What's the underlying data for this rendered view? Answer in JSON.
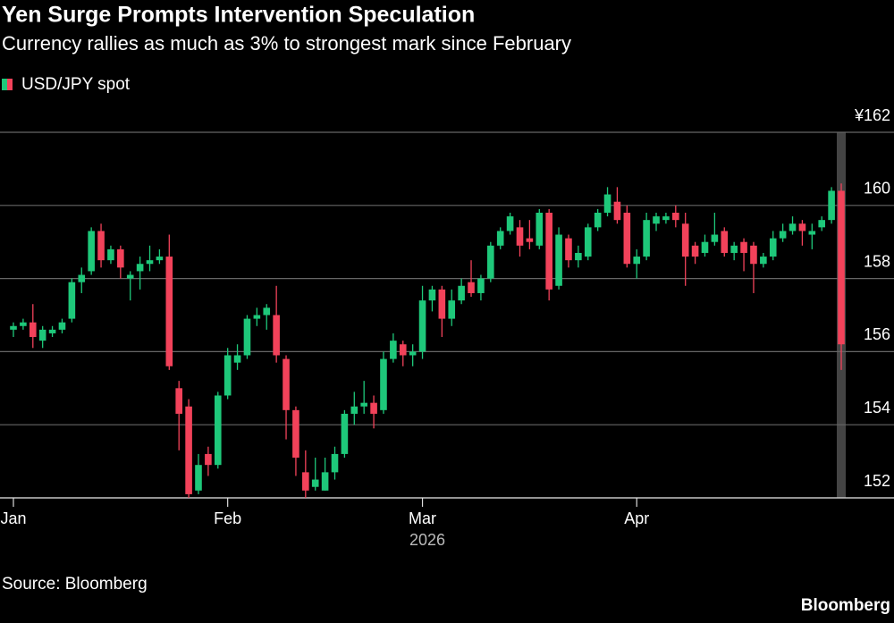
{
  "chart_data": {
    "type": "candlestick",
    "title": "Yen Surge Prompts Intervention Speculation",
    "subtitle": "Currency rallies as much as 3% to strongest mark since February",
    "source": "Source: Bloomberg",
    "brand": "Bloomberg",
    "x_label": "2026",
    "categories": [
      "Jan",
      null,
      null,
      null,
      null,
      null,
      null,
      null,
      null,
      null,
      null,
      null,
      null,
      null,
      null,
      null,
      null,
      null,
      null,
      null,
      null,
      null,
      "Feb",
      null,
      null,
      null,
      null,
      null,
      null,
      null,
      null,
      null,
      null,
      null,
      null,
      null,
      null,
      null,
      null,
      null,
      null,
      null,
      "Mar",
      null,
      null,
      null,
      null,
      null,
      null,
      null,
      null,
      null,
      null,
      null,
      null,
      null,
      null,
      null,
      null,
      null,
      null,
      null,
      null,
      null,
      "Apr",
      null,
      null,
      null,
      null,
      null,
      null,
      null,
      null,
      null,
      null,
      null,
      null,
      null,
      null,
      null,
      null,
      null,
      null,
      null,
      null,
      null
    ],
    "series": [
      {
        "name": "USD/JPY spot",
        "up_color": "#1ec87a",
        "down_color": "#f2425a",
        "open": [
          156.6,
          156.7,
          156.8,
          156.3,
          156.5,
          156.6,
          156.9,
          157.9,
          158.2,
          159.3,
          158.5,
          158.8,
          158.0,
          158.2,
          158.4,
          158.5,
          158.6,
          155.0,
          154.5,
          152.2,
          153.2,
          152.9,
          154.8,
          155.7,
          155.9,
          156.9,
          157.0,
          157.0,
          155.8,
          154.4,
          152.7,
          152.3,
          152.2,
          152.7,
          153.2,
          154.3,
          154.5,
          154.6,
          154.4,
          155.8,
          156.2,
          155.9,
          156.0,
          157.4,
          157.7,
          156.9,
          157.4,
          157.9,
          157.6,
          158.0,
          158.9,
          159.3,
          159.4,
          159.1,
          158.9,
          159.8,
          157.8,
          159.1,
          158.5,
          158.6,
          159.4,
          159.8,
          160.1,
          159.8,
          158.4,
          158.6,
          159.5,
          159.6,
          159.8,
          159.5,
          158.9,
          158.7,
          159.0,
          159.3,
          158.7,
          159.0,
          158.9,
          158.4,
          158.6,
          159.1,
          159.3,
          159.5,
          159.2,
          159.4,
          159.6,
          160.4
        ],
        "high": [
          156.8,
          156.9,
          157.3,
          156.7,
          156.7,
          156.9,
          158.0,
          158.3,
          159.4,
          159.5,
          158.9,
          158.9,
          158.2,
          158.6,
          158.9,
          158.8,
          159.2,
          155.2,
          154.7,
          153.2,
          153.4,
          154.9,
          156.1,
          156.2,
          157.0,
          157.2,
          157.3,
          157.8,
          155.9,
          154.5,
          153.3,
          153.1,
          153.1,
          153.4,
          154.4,
          154.9,
          155.2,
          154.8,
          156.0,
          156.5,
          156.3,
          156.2,
          157.8,
          157.8,
          157.8,
          157.7,
          158.0,
          158.5,
          158.1,
          159.0,
          159.4,
          159.8,
          159.6,
          159.6,
          159.9,
          159.9,
          159.4,
          159.2,
          158.9,
          159.5,
          159.9,
          160.5,
          160.5,
          160.0,
          158.8,
          159.8,
          159.8,
          159.8,
          160.0,
          159.8,
          159.0,
          159.2,
          159.8,
          159.4,
          159.0,
          159.1,
          159.0,
          158.7,
          159.3,
          159.5,
          159.7,
          159.6,
          159.5,
          159.7,
          160.5,
          160.6
        ],
        "low": [
          156.4,
          156.6,
          156.1,
          156.1,
          156.4,
          156.5,
          156.8,
          157.6,
          158.1,
          158.3,
          158.4,
          158.0,
          157.4,
          157.7,
          158.2,
          158.4,
          155.5,
          153.3,
          152.0,
          152.1,
          152.6,
          152.8,
          154.7,
          155.5,
          155.8,
          156.7,
          156.6,
          155.7,
          153.6,
          152.6,
          152.0,
          152.2,
          152.2,
          152.5,
          153.1,
          154.0,
          154.3,
          153.9,
          154.3,
          155.7,
          155.6,
          155.6,
          155.8,
          157.1,
          156.4,
          156.7,
          157.3,
          157.5,
          157.4,
          157.9,
          158.8,
          159.2,
          158.6,
          158.8,
          158.8,
          157.4,
          157.7,
          158.3,
          158.3,
          158.5,
          159.3,
          159.7,
          159.5,
          158.3,
          158.0,
          158.5,
          159.3,
          159.5,
          159.4,
          157.8,
          158.4,
          158.6,
          158.9,
          158.6,
          158.5,
          158.2,
          157.6,
          158.3,
          158.5,
          159.0,
          159.2,
          158.9,
          158.8,
          159.3,
          159.5,
          155.5
        ],
        "close": [
          156.7,
          156.8,
          156.4,
          156.6,
          156.6,
          156.8,
          157.9,
          158.1,
          159.3,
          158.5,
          158.8,
          158.3,
          158.1,
          158.4,
          158.5,
          158.6,
          155.6,
          154.3,
          152.1,
          152.9,
          152.9,
          154.8,
          155.9,
          155.9,
          156.9,
          157.0,
          157.2,
          155.9,
          154.4,
          153.1,
          152.2,
          152.5,
          152.7,
          153.2,
          154.3,
          154.5,
          154.6,
          154.3,
          155.8,
          156.3,
          155.9,
          156.0,
          157.4,
          157.7,
          156.9,
          157.4,
          157.8,
          157.6,
          158.0,
          158.9,
          159.3,
          159.7,
          158.9,
          159.0,
          159.8,
          157.7,
          159.2,
          158.5,
          158.7,
          159.4,
          159.8,
          160.3,
          159.6,
          158.4,
          158.6,
          159.6,
          159.7,
          159.7,
          159.6,
          158.6,
          158.6,
          159.0,
          159.2,
          158.7,
          158.9,
          158.7,
          158.4,
          158.6,
          159.1,
          159.3,
          159.5,
          159.3,
          159.3,
          159.6,
          160.4,
          156.2
        ]
      }
    ],
    "ylim": [
      152,
      162
    ],
    "yticks": [
      152,
      154,
      156,
      158,
      160,
      {
        "value": 162,
        "label": "¥162"
      }
    ],
    "grid": true,
    "highlight_color": "#444444"
  }
}
